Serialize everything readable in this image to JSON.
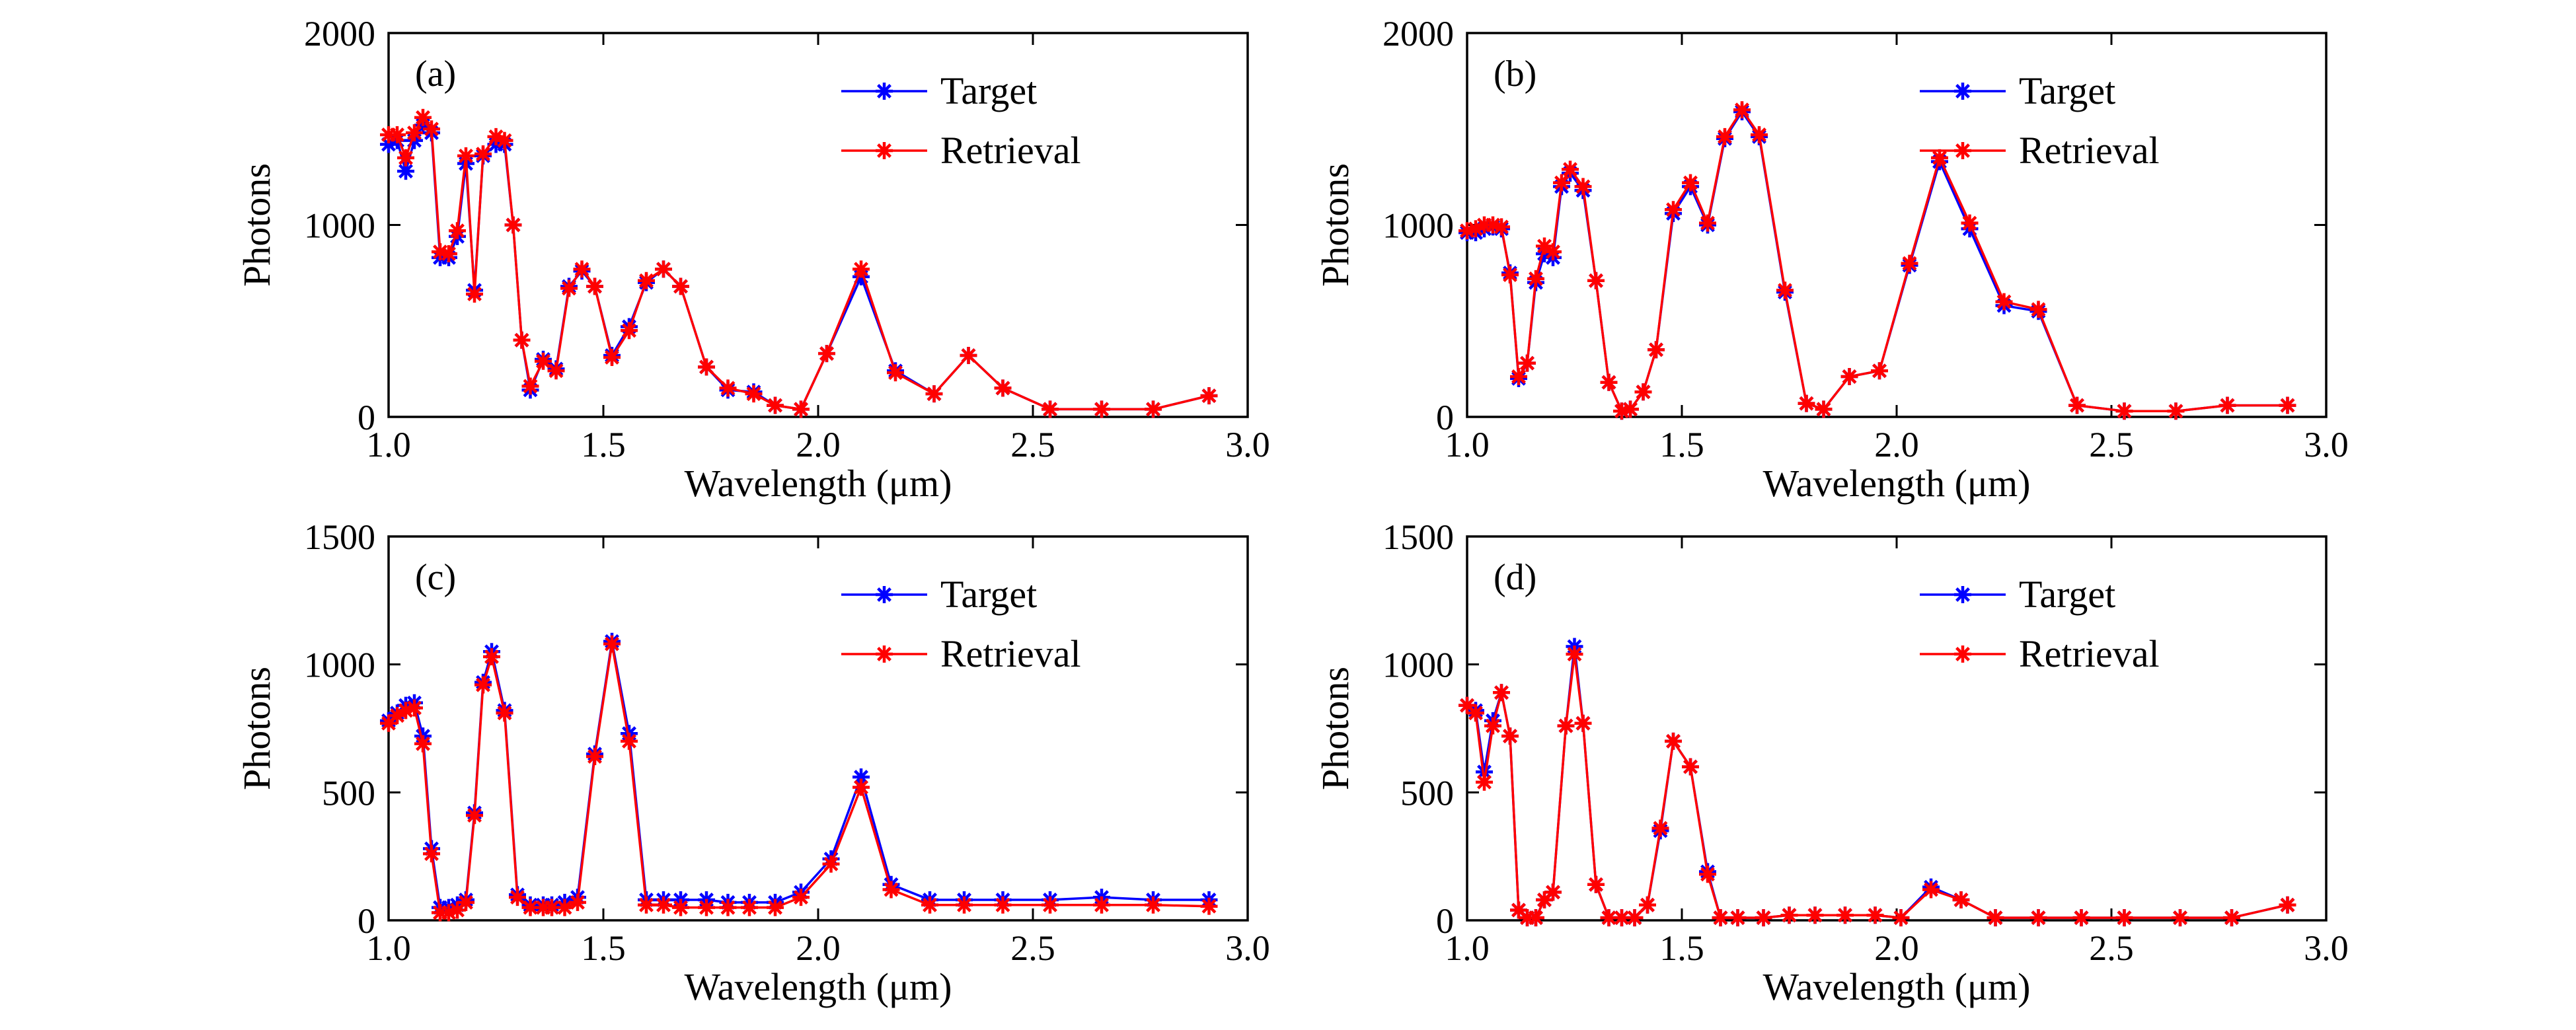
{
  "colors": {
    "target": "#0000FF",
    "retrieval": "#FF0000",
    "axes": "#000000",
    "background": "#FFFFFF"
  },
  "chart_data": [
    {
      "type": "line",
      "panel_label": "(a)",
      "xlabel": "Wavelength (μm)",
      "ylabel": "Photons",
      "xlim": [
        1.0,
        3.0
      ],
      "ylim": [
        0,
        2000
      ],
      "xticks": [
        "1.0",
        "1.5",
        "2.0",
        "2.5",
        "3.0"
      ],
      "yticks": [
        "0",
        "1000",
        "2000"
      ],
      "legend": {
        "entries": [
          "Target",
          "Retrieval"
        ],
        "placement": "top-right"
      },
      "series": [
        {
          "name": "Target",
          "marker": "asterisk",
          "x": [
            1.0,
            1.02,
            1.04,
            1.06,
            1.08,
            1.1,
            1.12,
            1.14,
            1.16,
            1.18,
            1.2,
            1.22,
            1.25,
            1.27,
            1.29,
            1.31,
            1.33,
            1.36,
            1.39,
            1.42,
            1.45,
            1.48,
            1.52,
            1.56,
            1.6,
            1.64,
            1.68,
            1.74,
            1.79,
            1.85,
            1.9,
            1.96,
            2.02,
            2.1,
            2.18,
            2.27,
            2.35,
            2.43,
            2.54,
            2.66,
            2.78,
            2.91
          ],
          "y": [
            1420,
            1440,
            1280,
            1440,
            1520,
            1480,
            830,
            830,
            940,
            1320,
            660,
            1360,
            1420,
            1420,
            1000,
            400,
            140,
            300,
            250,
            680,
            760,
            680,
            320,
            470,
            700,
            770,
            680,
            260,
            140,
            130,
            60,
            40,
            330,
            730,
            240,
            120,
            320,
            150,
            40,
            40,
            40,
            110
          ]
        },
        {
          "name": "Retrieval",
          "marker": "asterisk",
          "x": [
            1.0,
            1.02,
            1.04,
            1.06,
            1.08,
            1.1,
            1.12,
            1.14,
            1.16,
            1.18,
            1.2,
            1.22,
            1.25,
            1.27,
            1.29,
            1.31,
            1.33,
            1.36,
            1.39,
            1.42,
            1.45,
            1.48,
            1.52,
            1.56,
            1.6,
            1.64,
            1.68,
            1.74,
            1.79,
            1.85,
            1.9,
            1.96,
            2.02,
            2.1,
            2.18,
            2.27,
            2.35,
            2.43,
            2.54,
            2.66,
            2.78,
            2.91
          ],
          "y": [
            1470,
            1470,
            1350,
            1480,
            1560,
            1500,
            860,
            850,
            970,
            1360,
            640,
            1370,
            1460,
            1440,
            1000,
            400,
            160,
            290,
            240,
            670,
            770,
            680,
            310,
            450,
            710,
            770,
            680,
            260,
            150,
            120,
            60,
            40,
            330,
            770,
            230,
            120,
            320,
            150,
            40,
            40,
            40,
            110
          ]
        }
      ]
    },
    {
      "type": "line",
      "panel_label": "(b)",
      "xlabel": "Wavelength (μm)",
      "ylabel": "Photons",
      "xlim": [
        1.0,
        3.0
      ],
      "ylim": [
        0,
        2000
      ],
      "xticks": [
        "1.0",
        "1.5",
        "2.0",
        "2.5",
        "3.0"
      ],
      "yticks": [
        "0",
        "1000",
        "2000"
      ],
      "legend": {
        "entries": [
          "Target",
          "Retrieval"
        ],
        "placement": "top-right"
      },
      "series": [
        {
          "name": "Target",
          "marker": "asterisk",
          "x": [
            1.0,
            1.02,
            1.04,
            1.06,
            1.08,
            1.1,
            1.12,
            1.14,
            1.16,
            1.18,
            1.2,
            1.22,
            1.24,
            1.27,
            1.3,
            1.33,
            1.36,
            1.38,
            1.41,
            1.44,
            1.48,
            1.52,
            1.56,
            1.6,
            1.64,
            1.68,
            1.74,
            1.79,
            1.83,
            1.89,
            1.96,
            2.03,
            2.1,
            2.17,
            2.25,
            2.33,
            2.42,
            2.53,
            2.65,
            2.77,
            2.91
          ],
          "y": [
            960,
            960,
            980,
            990,
            980,
            750,
            200,
            280,
            700,
            850,
            830,
            1200,
            1270,
            1180,
            710,
            180,
            30,
            40,
            130,
            350,
            1060,
            1200,
            1000,
            1450,
            1590,
            1460,
            650,
            70,
            40,
            210,
            240,
            790,
            1330,
            980,
            580,
            550,
            60,
            30,
            30,
            60,
            60
          ]
        },
        {
          "name": "Retrieval",
          "marker": "asterisk",
          "x": [
            1.0,
            1.02,
            1.04,
            1.06,
            1.08,
            1.1,
            1.12,
            1.14,
            1.16,
            1.18,
            1.2,
            1.22,
            1.24,
            1.27,
            1.3,
            1.33,
            1.36,
            1.38,
            1.41,
            1.44,
            1.48,
            1.52,
            1.56,
            1.6,
            1.64,
            1.68,
            1.74,
            1.79,
            1.83,
            1.89,
            1.96,
            2.03,
            2.1,
            2.17,
            2.25,
            2.33,
            2.42,
            2.53,
            2.65,
            2.77,
            2.91
          ],
          "y": [
            970,
            980,
            1000,
            1000,
            990,
            740,
            210,
            280,
            720,
            890,
            860,
            1220,
            1290,
            1200,
            710,
            180,
            30,
            40,
            130,
            350,
            1080,
            1220,
            1010,
            1460,
            1600,
            1470,
            660,
            70,
            40,
            210,
            240,
            800,
            1350,
            1010,
            600,
            560,
            60,
            30,
            30,
            60,
            60
          ]
        }
      ]
    },
    {
      "type": "line",
      "panel_label": "(c)",
      "xlabel": "Wavelength (μm)",
      "ylabel": "Photons",
      "xlim": [
        1.0,
        3.0
      ],
      "ylim": [
        0,
        1500
      ],
      "xticks": [
        "1.0",
        "1.5",
        "2.0",
        "2.5",
        "3.0"
      ],
      "yticks": [
        "0",
        "500",
        "1000",
        "1500"
      ],
      "legend": {
        "entries": [
          "Target",
          "Retrieval"
        ],
        "placement": "top-right"
      },
      "series": [
        {
          "name": "Target",
          "marker": "asterisk",
          "x": [
            1.0,
            1.02,
            1.04,
            1.06,
            1.08,
            1.1,
            1.12,
            1.14,
            1.16,
            1.18,
            1.2,
            1.22,
            1.24,
            1.27,
            1.3,
            1.33,
            1.36,
            1.38,
            1.41,
            1.44,
            1.48,
            1.52,
            1.56,
            1.6,
            1.64,
            1.68,
            1.74,
            1.79,
            1.84,
            1.9,
            1.96,
            2.03,
            2.1,
            2.17,
            2.26,
            2.34,
            2.43,
            2.54,
            2.66,
            2.78,
            2.91
          ],
          "y": [
            780,
            810,
            840,
            850,
            720,
            280,
            50,
            50,
            60,
            80,
            420,
            930,
            1050,
            820,
            100,
            60,
            60,
            60,
            70,
            90,
            650,
            1090,
            730,
            80,
            80,
            80,
            80,
            70,
            70,
            70,
            110,
            240,
            560,
            140,
            80,
            80,
            80,
            80,
            90,
            80,
            80
          ]
        },
        {
          "name": "Retrieval",
          "marker": "asterisk",
          "x": [
            1.0,
            1.02,
            1.04,
            1.06,
            1.08,
            1.1,
            1.12,
            1.14,
            1.16,
            1.18,
            1.2,
            1.22,
            1.24,
            1.27,
            1.3,
            1.33,
            1.36,
            1.38,
            1.41,
            1.44,
            1.48,
            1.52,
            1.56,
            1.6,
            1.64,
            1.68,
            1.74,
            1.79,
            1.84,
            1.9,
            1.96,
            2.03,
            2.1,
            2.17,
            2.26,
            2.34,
            2.43,
            2.54,
            2.66,
            2.78,
            2.91
          ],
          "y": [
            770,
            800,
            820,
            830,
            690,
            260,
            30,
            30,
            40,
            70,
            410,
            920,
            1030,
            810,
            90,
            50,
            50,
            50,
            50,
            70,
            640,
            1080,
            700,
            60,
            60,
            50,
            50,
            50,
            50,
            50,
            90,
            220,
            520,
            120,
            60,
            60,
            60,
            60,
            60,
            60,
            55
          ]
        }
      ]
    },
    {
      "type": "line",
      "panel_label": "(d)",
      "xlabel": "Wavelength (μm)",
      "ylabel": "Photons",
      "xlim": [
        1.0,
        3.0
      ],
      "ylim": [
        0,
        1500
      ],
      "xticks": [
        "1.0",
        "1.5",
        "2.0",
        "2.5",
        "3.0"
      ],
      "yticks": [
        "0",
        "500",
        "1000",
        "1500"
      ],
      "legend": {
        "entries": [
          "Target",
          "Retrieval"
        ],
        "placement": "top-right"
      },
      "series": [
        {
          "name": "Target",
          "marker": "asterisk",
          "x": [
            1.0,
            1.02,
            1.04,
            1.06,
            1.08,
            1.1,
            1.12,
            1.14,
            1.16,
            1.18,
            1.2,
            1.23,
            1.25,
            1.27,
            1.3,
            1.33,
            1.36,
            1.39,
            1.42,
            1.45,
            1.48,
            1.52,
            1.56,
            1.59,
            1.63,
            1.69,
            1.75,
            1.81,
            1.88,
            1.95,
            2.01,
            2.08,
            2.15,
            2.23,
            2.33,
            2.43,
            2.53,
            2.66,
            2.78,
            2.91
          ],
          "y": [
            840,
            820,
            580,
            780,
            890,
            720,
            40,
            10,
            10,
            80,
            110,
            760,
            1070,
            770,
            140,
            10,
            10,
            10,
            60,
            350,
            700,
            600,
            190,
            10,
            10,
            10,
            20,
            20,
            20,
            20,
            10,
            130,
            80,
            10,
            10,
            10,
            10,
            10,
            10,
            60
          ]
        },
        {
          "name": "Retrieval",
          "marker": "asterisk",
          "x": [
            1.0,
            1.02,
            1.04,
            1.06,
            1.08,
            1.1,
            1.12,
            1.14,
            1.16,
            1.18,
            1.2,
            1.23,
            1.25,
            1.27,
            1.3,
            1.33,
            1.36,
            1.39,
            1.42,
            1.45,
            1.48,
            1.52,
            1.56,
            1.59,
            1.63,
            1.69,
            1.75,
            1.81,
            1.88,
            1.95,
            2.01,
            2.08,
            2.15,
            2.23,
            2.33,
            2.43,
            2.53,
            2.66,
            2.78,
            2.91
          ],
          "y": [
            840,
            810,
            540,
            760,
            890,
            720,
            40,
            10,
            10,
            80,
            110,
            760,
            1040,
            770,
            140,
            10,
            10,
            10,
            60,
            360,
            700,
            600,
            180,
            10,
            10,
            10,
            20,
            20,
            20,
            20,
            10,
            120,
            80,
            10,
            10,
            10,
            10,
            10,
            10,
            60
          ]
        }
      ]
    }
  ]
}
